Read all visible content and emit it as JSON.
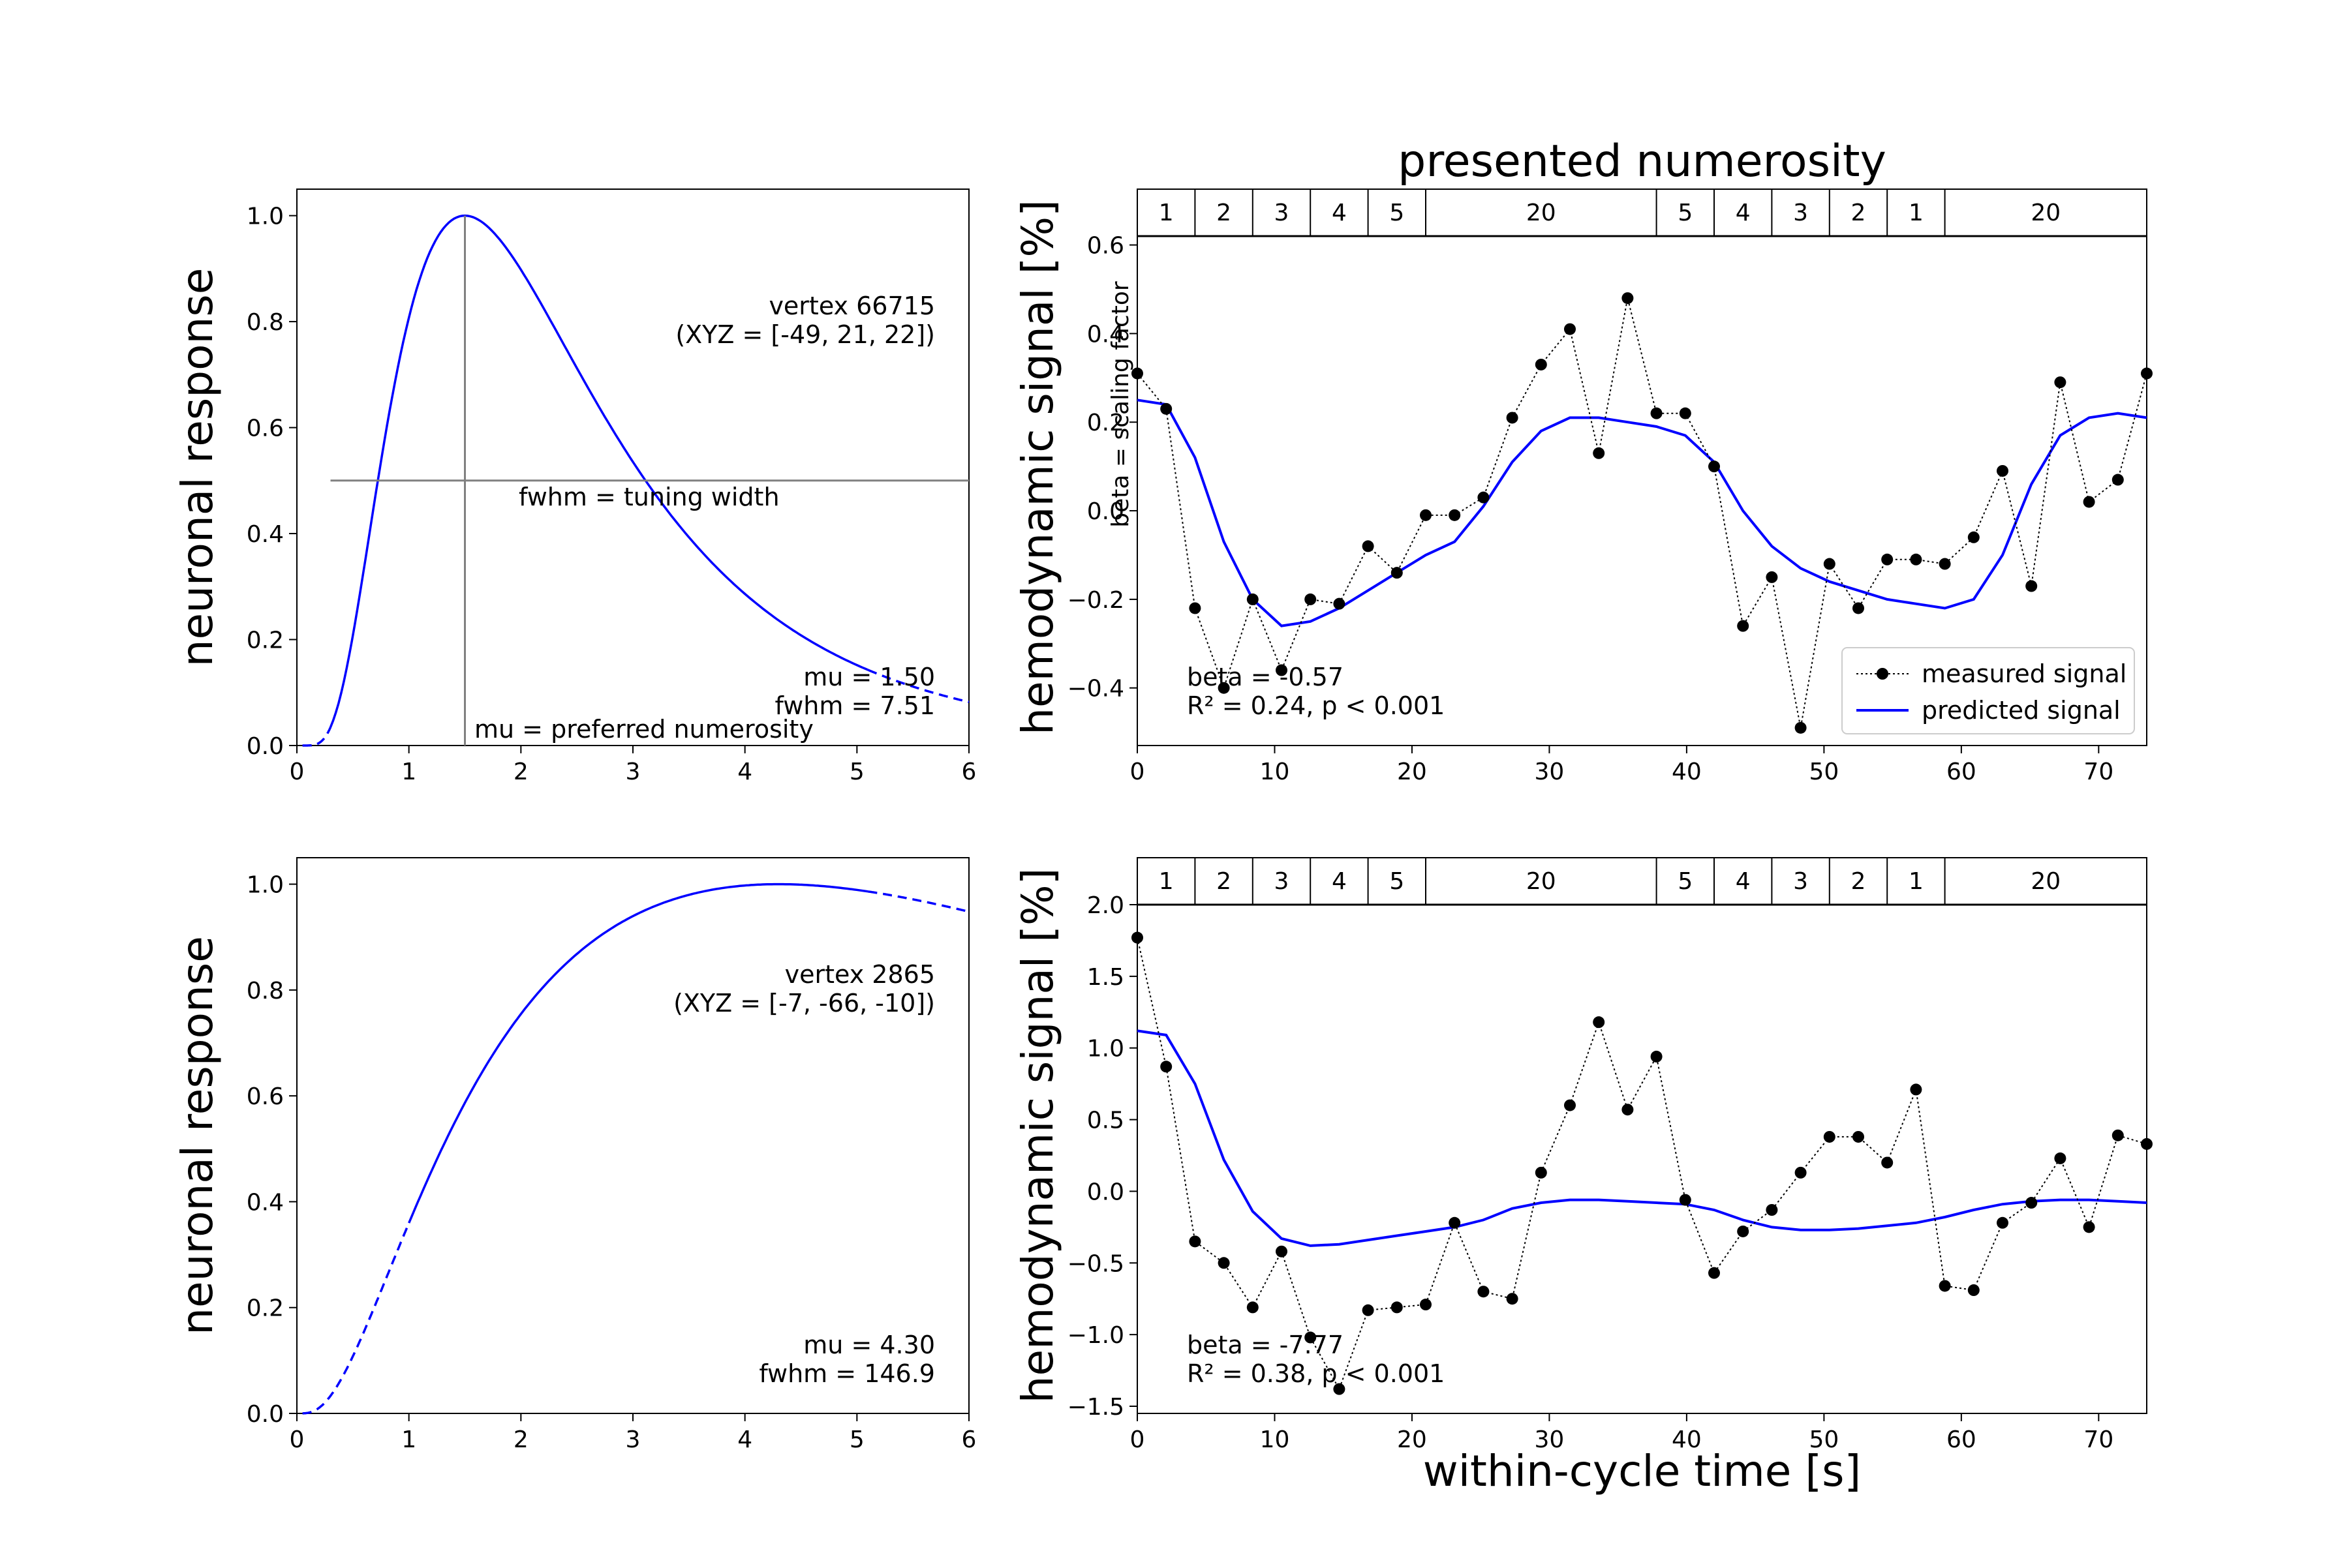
{
  "figure_title": "presented numerosity",
  "shared_xlabel": "within-cycle time [s]",
  "chart_data": [
    {
      "id": "tuning_top",
      "type": "line",
      "xlabel": "",
      "ylabel": "neuronal response",
      "xlim": [
        0,
        6
      ],
      "ylim": [
        0,
        1.05
      ],
      "xticks": [
        "0",
        "1",
        "2",
        "3",
        "4",
        "5",
        "6"
      ],
      "yticks": [
        "0.0",
        "0.2",
        "0.4",
        "0.6",
        "0.8",
        "1.0"
      ],
      "tuning": {
        "mu": 1.5,
        "fwhm": 7.51,
        "x_start": 0.05,
        "x_end": 6.0,
        "solid_from": 0.3,
        "solid_to": 5.1
      },
      "series_color": "#0000ff",
      "guide_color": "#808080",
      "guide_lines": {
        "vertical_x": 1.5,
        "horizontal_y": 0.5
      },
      "annotations": {
        "vertex": "vertex 66715",
        "coords": "(XYZ = [-49, 21, 22])",
        "fwhm_label": "fwhm = tuning width",
        "mu_label": "mu = preferred numerosity",
        "mu_value": "mu = 1.50",
        "fwhm_value": "fwhm = 7.51"
      }
    },
    {
      "id": "signal_top",
      "type": "line",
      "ylabel": "hemodynamic signal [%]",
      "xlim": [
        0,
        73.5
      ],
      "ylim": [
        -0.53,
        0.62
      ],
      "xticks": [
        "0",
        "10",
        "20",
        "30",
        "40",
        "50",
        "60",
        "70"
      ],
      "yticks": [
        "−0.4",
        "−0.2",
        "0.0",
        "0.2",
        "0.4",
        "0.6"
      ],
      "numerosity_bar": {
        "labels": [
          "1",
          "2",
          "3",
          "4",
          "5",
          "20",
          "5",
          "4",
          "3",
          "2",
          "1",
          "20"
        ],
        "boundaries": [
          0,
          4.2,
          8.4,
          12.6,
          16.8,
          21.0,
          37.8,
          42.0,
          46.2,
          50.4,
          54.6,
          58.8,
          73.5
        ]
      },
      "side_label": "beta = scaling factor",
      "series": [
        {
          "name": "measured signal",
          "color": "#000000",
          "x": [
            0,
            2.1,
            4.2,
            6.3,
            8.4,
            10.5,
            12.6,
            14.7,
            16.8,
            18.9,
            21.0,
            23.1,
            25.2,
            27.3,
            29.4,
            31.5,
            33.6,
            35.7,
            37.8,
            39.9,
            42.0,
            44.1,
            46.2,
            48.3,
            50.4,
            52.5,
            54.6,
            56.7,
            58.8,
            60.9,
            63.0,
            65.1,
            67.2,
            69.3,
            71.4,
            73.5
          ],
          "y": [
            0.31,
            0.23,
            -0.22,
            -0.4,
            -0.2,
            -0.36,
            -0.2,
            -0.21,
            -0.08,
            -0.14,
            -0.01,
            -0.01,
            0.03,
            0.21,
            0.33,
            0.41,
            0.13,
            0.48,
            0.22,
            0.22,
            0.1,
            -0.26,
            -0.15,
            -0.49,
            -0.12,
            -0.22,
            -0.11,
            -0.11,
            -0.12,
            -0.06,
            0.09,
            -0.17,
            0.29,
            0.02,
            0.07,
            0.31
          ]
        },
        {
          "name": "predicted signal",
          "color": "#0000ff",
          "x": [
            0,
            2.1,
            4.2,
            6.3,
            8.4,
            10.5,
            12.6,
            14.7,
            16.8,
            18.9,
            21.0,
            23.1,
            25.2,
            27.3,
            29.4,
            31.5,
            33.6,
            35.7,
            37.8,
            39.9,
            42.0,
            44.1,
            46.2,
            48.3,
            50.4,
            52.5,
            54.6,
            56.7,
            58.8,
            60.9,
            63.0,
            65.1,
            67.2,
            69.3,
            71.4,
            73.5
          ],
          "y": [
            0.25,
            0.24,
            0.12,
            -0.07,
            -0.2,
            -0.26,
            -0.25,
            -0.22,
            -0.18,
            -0.14,
            -0.1,
            -0.07,
            0.01,
            0.11,
            0.18,
            0.21,
            0.21,
            0.2,
            0.19,
            0.17,
            0.11,
            0.0,
            -0.08,
            -0.13,
            -0.16,
            -0.18,
            -0.2,
            -0.21,
            -0.22,
            -0.2,
            -0.1,
            0.06,
            0.17,
            0.21,
            0.22,
            0.21
          ]
        }
      ],
      "legend": {
        "placement": "lower right"
      },
      "annotations": {
        "beta": "beta = -0.57",
        "r2": "R² = 0.24, p < 0.001"
      }
    },
    {
      "id": "tuning_bottom",
      "type": "line",
      "ylabel": "neuronal response",
      "xlim": [
        0,
        6
      ],
      "ylim": [
        0,
        1.05
      ],
      "xticks": [
        "0",
        "1",
        "2",
        "3",
        "4",
        "5",
        "6"
      ],
      "yticks": [
        "0.0",
        "0.2",
        "0.4",
        "0.6",
        "0.8",
        "1.0"
      ],
      "tuning": {
        "mu": 4.3,
        "fwhm": 146.9,
        "x_start": 0.05,
        "x_end": 6.0,
        "solid_from": 1.0,
        "solid_to": 5.1
      },
      "series_color": "#0000ff",
      "annotations": {
        "vertex": "vertex 2865",
        "coords": "(XYZ = [-7, -66, -10])",
        "mu_value": "mu = 4.30",
        "fwhm_value": "fwhm = 146.9"
      }
    },
    {
      "id": "signal_bottom",
      "type": "line",
      "ylabel": "hemodynamic signal [%]",
      "xlabel": "within-cycle time [s]",
      "xlim": [
        0,
        73.5
      ],
      "ylim": [
        -1.55,
        2.0
      ],
      "xticks": [
        "0",
        "10",
        "20",
        "30",
        "40",
        "50",
        "60",
        "70"
      ],
      "yticks": [
        "−1.5",
        "−1.0",
        "−0.5",
        "0.0",
        "0.5",
        "1.0",
        "1.5",
        "2.0"
      ],
      "numerosity_bar": {
        "labels": [
          "1",
          "2",
          "3",
          "4",
          "5",
          "20",
          "5",
          "4",
          "3",
          "2",
          "1",
          "20"
        ],
        "boundaries": [
          0,
          4.2,
          8.4,
          12.6,
          16.8,
          21.0,
          37.8,
          42.0,
          46.2,
          50.4,
          54.6,
          58.8,
          73.5
        ]
      },
      "series": [
        {
          "name": "measured signal",
          "color": "#000000",
          "x": [
            0,
            2.1,
            4.2,
            6.3,
            8.4,
            10.5,
            12.6,
            14.7,
            16.8,
            18.9,
            21.0,
            23.1,
            25.2,
            27.3,
            29.4,
            31.5,
            33.6,
            35.7,
            37.8,
            39.9,
            42.0,
            44.1,
            46.2,
            48.3,
            50.4,
            52.5,
            54.6,
            56.7,
            58.8,
            60.9,
            63.0,
            65.1,
            67.2,
            69.3,
            71.4,
            73.5
          ],
          "y": [
            1.77,
            0.87,
            -0.35,
            -0.5,
            -0.81,
            -0.42,
            -1.02,
            -1.38,
            -0.83,
            -0.81,
            -0.79,
            -0.22,
            -0.7,
            -0.75,
            0.13,
            0.6,
            1.18,
            0.57,
            0.94,
            -0.06,
            -0.57,
            -0.28,
            -0.13,
            0.13,
            0.38,
            0.38,
            0.2,
            0.71,
            -0.66,
            -0.69,
            -0.22,
            -0.08,
            0.23,
            -0.25,
            0.39,
            0.33
          ]
        },
        {
          "name": "predicted signal",
          "color": "#0000ff",
          "x": [
            0,
            2.1,
            4.2,
            6.3,
            8.4,
            10.5,
            12.6,
            14.7,
            16.8,
            18.9,
            21.0,
            23.1,
            25.2,
            27.3,
            29.4,
            31.5,
            33.6,
            35.7,
            37.8,
            39.9,
            42.0,
            44.1,
            46.2,
            48.3,
            50.4,
            52.5,
            54.6,
            56.7,
            58.8,
            60.9,
            63.0,
            65.1,
            67.2,
            69.3,
            71.4,
            73.5
          ],
          "y": [
            1.12,
            1.09,
            0.75,
            0.22,
            -0.14,
            -0.33,
            -0.38,
            -0.37,
            -0.34,
            -0.31,
            -0.28,
            -0.25,
            -0.2,
            -0.12,
            -0.08,
            -0.06,
            -0.06,
            -0.07,
            -0.08,
            -0.09,
            -0.13,
            -0.2,
            -0.25,
            -0.27,
            -0.27,
            -0.26,
            -0.24,
            -0.22,
            -0.18,
            -0.13,
            -0.09,
            -0.07,
            -0.06,
            -0.06,
            -0.07,
            -0.08
          ]
        }
      ],
      "annotations": {
        "beta": "beta = -7.77",
        "r2": "R² = 0.38, p < 0.001"
      }
    }
  ]
}
